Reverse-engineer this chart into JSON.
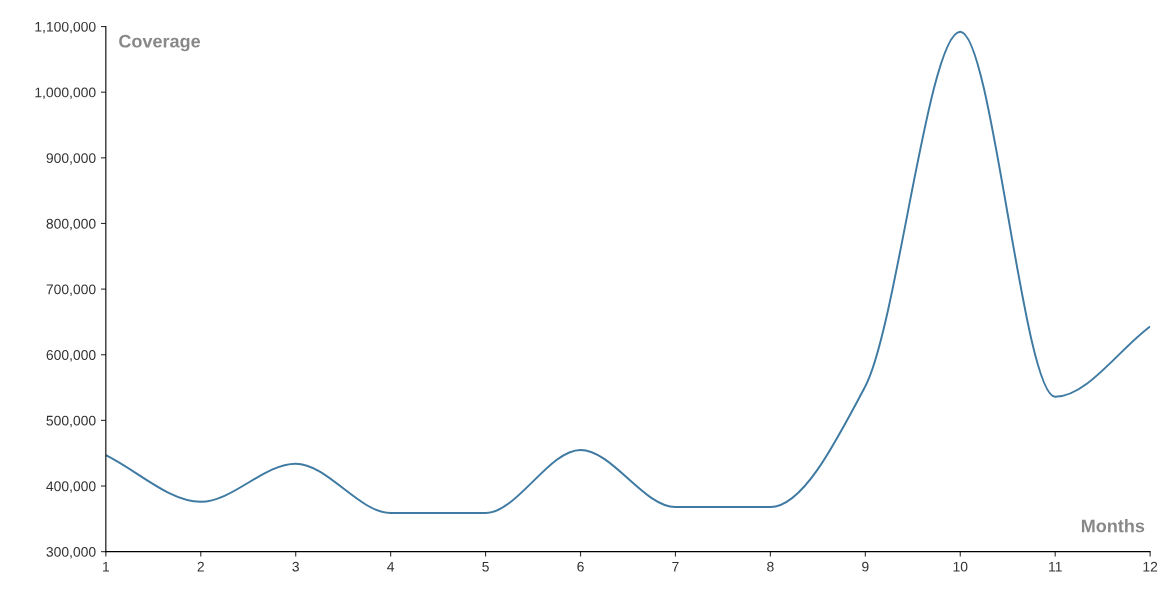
{
  "chart_data": {
    "type": "line",
    "xlabel": "Months",
    "ylabel": "Coverage",
    "x": [
      1,
      2,
      3,
      4,
      5,
      6,
      7,
      8,
      9,
      10,
      11,
      12
    ],
    "series": [
      {
        "color": "#3f7aa3",
        "values": [
          447000,
          376000,
          434000,
          359000,
          359000,
          455000,
          368000,
          368000,
          552000,
          1092000,
          536000,
          643000
        ]
      }
    ],
    "xlim": [
      1,
      12
    ],
    "xticks": [
      1,
      2,
      3,
      4,
      5,
      6,
      7,
      8,
      9,
      10,
      11,
      12
    ],
    "ylim": [
      300000,
      1100000
    ],
    "yticks": [
      {
        "value": 300000,
        "label": "300,000"
      },
      {
        "value": 400000,
        "label": "400,000"
      },
      {
        "value": 500000,
        "label": "500,000"
      },
      {
        "value": 600000,
        "label": "600,000"
      },
      {
        "value": 700000,
        "label": "700,000"
      },
      {
        "value": 800000,
        "label": "800,000"
      },
      {
        "value": 900000,
        "label": "900,000"
      },
      {
        "value": 1000000,
        "label": "1,000,000"
      },
      {
        "value": 1100000,
        "label": "1,100,000"
      }
    ],
    "grid": false,
    "legend": false,
    "marker": "none",
    "line_style": "solid"
  }
}
